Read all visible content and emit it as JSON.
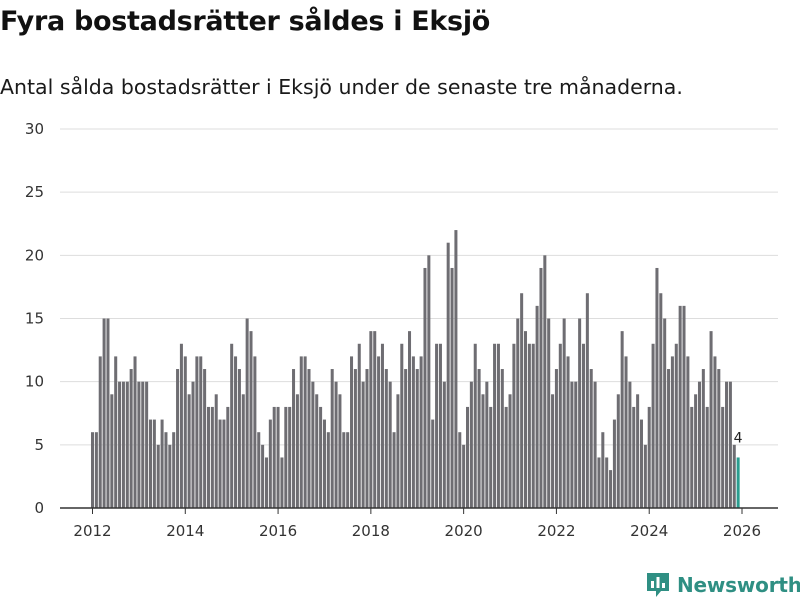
{
  "title": "Fyra bostadsrätter såldes i Eksjö",
  "subtitle": "Antal sålda bostadsrätter i Eksjö under de senaste tre månaderna.",
  "brand": {
    "name": "Newsworthy",
    "icon": "newsworthy-logo-icon"
  },
  "colors": {
    "bar": "#6e6d72",
    "highlight": "#2a9d8f",
    "grid": "#dddddd",
    "axis": "#333333",
    "brand": "#2f8f83"
  },
  "chart_data": {
    "type": "bar",
    "title": "Fyra bostadsrätter såldes i Eksjö",
    "subtitle": "Antal sålda bostadsrätter i Eksjö under de senaste tre månaderna.",
    "xlabel": "",
    "ylabel": "",
    "ylim": [
      0,
      30
    ],
    "yticks": [
      0,
      5,
      10,
      15,
      20,
      25,
      30
    ],
    "xticks": [
      "2012",
      "2014",
      "2016",
      "2018",
      "2020",
      "2022",
      "2024",
      "2026"
    ],
    "x_start": "2012-01",
    "x_end": "2026-01",
    "grid": true,
    "highlight_last": true,
    "annotation": {
      "text": "4",
      "target": "last"
    },
    "values": [
      6,
      6,
      12,
      15,
      15,
      9,
      12,
      10,
      10,
      10,
      11,
      12,
      10,
      10,
      10,
      7,
      7,
      5,
      7,
      6,
      5,
      6,
      11,
      13,
      12,
      9,
      10,
      12,
      12,
      11,
      8,
      8,
      9,
      7,
      7,
      8,
      13,
      12,
      11,
      9,
      15,
      14,
      12,
      6,
      5,
      4,
      7,
      8,
      8,
      4,
      8,
      8,
      11,
      9,
      12,
      12,
      11,
      10,
      9,
      8,
      7,
      6,
      11,
      10,
      9,
      6,
      6,
      12,
      11,
      13,
      10,
      11,
      14,
      14,
      12,
      13,
      11,
      10,
      6,
      9,
      13,
      11,
      14,
      12,
      11,
      12,
      19,
      20,
      7,
      13,
      13,
      10,
      21,
      19,
      22,
      6,
      5,
      8,
      10,
      13,
      11,
      9,
      10,
      8,
      13,
      13,
      11,
      8,
      9,
      13,
      15,
      17,
      14,
      13,
      13,
      16,
      19,
      20,
      15,
      9,
      11,
      13,
      15,
      12,
      10,
      10,
      15,
      13,
      17,
      11,
      10,
      4,
      6,
      4,
      3,
      7,
      9,
      14,
      12,
      10,
      8,
      9,
      7,
      5,
      8,
      13,
      19,
      17,
      15,
      11,
      12,
      13,
      16,
      16,
      12,
      8,
      9,
      10,
      11,
      8,
      14,
      12,
      11,
      8,
      10,
      10,
      5,
      4
    ]
  }
}
